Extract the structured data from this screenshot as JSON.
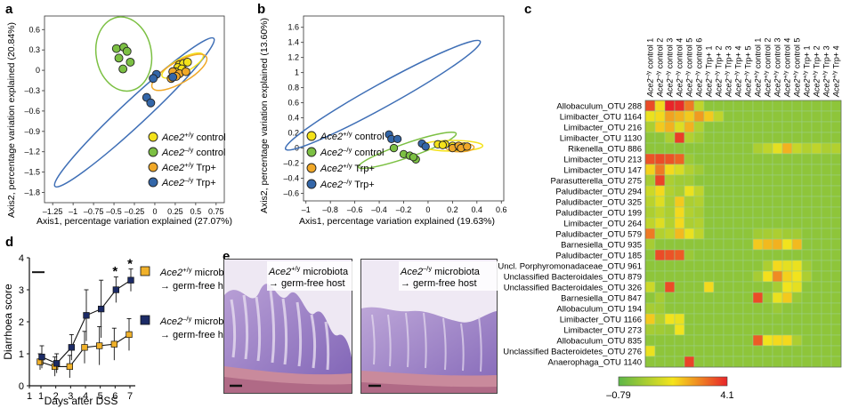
{
  "panels": {
    "a": {
      "letter": "a",
      "xlabel": "Axis1, percentage variation explained (27.07%)",
      "ylabel": "Axis2, percentage variation explained (20.84%)",
      "xticks": [
        "–1.25",
        "–1",
        "–0.75",
        "–0.5",
        "–0.25",
        "0",
        "0.25",
        "0.5",
        "0.75"
      ],
      "yticks": [
        "0.6",
        "0.3",
        "0",
        "–0.3",
        "–0.6",
        "–0.9",
        "–1.2",
        "–1.5",
        "–1.8"
      ],
      "legend": [
        {
          "gene": "Ace2",
          "sup": "+/y",
          "suffix": " control",
          "color": "#f4e21a"
        },
        {
          "gene": "Ace2",
          "sup": "–/y",
          "suffix": " control",
          "color": "#7cc043"
        },
        {
          "gene": "Ace2",
          "sup": "+/y",
          "suffix": " Trp+",
          "color": "#f0a828"
        },
        {
          "gene": "Ace2",
          "sup": "–/y",
          "suffix": " Trp+",
          "color": "#3366a8"
        }
      ]
    },
    "b": {
      "letter": "b",
      "xlabel": "Axis1, percentage variation explained (19.63%)",
      "ylabel": "Axis2, percentage variation explained (13.60%)",
      "xticks": [
        "–1",
        "–0.8",
        "–0.6",
        "–0.4",
        "–0.2",
        "0",
        "0.2",
        "0.4",
        "0.6"
      ],
      "yticks": [
        "1.6",
        "1.4",
        "1.2",
        "1",
        "0.8",
        "0.6",
        "0.4",
        "0.2",
        "0",
        "–0.2",
        "–0.4",
        "–0.6"
      ],
      "legend": [
        {
          "gene": "Ace2",
          "sup": "+/y",
          "suffix": " control",
          "color": "#f4e21a"
        },
        {
          "gene": "Ace2",
          "sup": "–/y",
          "suffix": " control",
          "color": "#7cc043"
        },
        {
          "gene": "Ace2",
          "sup": "+/y",
          "suffix": " Trp+",
          "color": "#f0a828"
        },
        {
          "gene": "Ace2",
          "sup": "–/y",
          "suffix": " Trp+",
          "color": "#3366a8"
        }
      ]
    },
    "c": {
      "letter": "c",
      "columns": [
        "Ace2–/y control 1",
        "Ace2–/y control 2",
        "Ace2–/y control 3",
        "Ace2–/y control 4",
        "Ace2–/y control 5",
        "Ace2–/y control 6",
        "Ace2–/y Trp+ 1",
        "Ace2–/y Trp+ 2",
        "Ace2–/y Trp+ 3",
        "Ace2–/y Trp+ 4",
        "Ace2–/y Trp+ 5",
        "Ace2+/y control 1",
        "Ace2+/y control 2",
        "Ace2+/y control 3",
        "Ace2+/y control 4",
        "Ace2+/y control 5",
        "Ace2+/y Trp+ 1",
        "Ace2+/y Trp+ 2",
        "Ace2+/y Trp+ 3",
        "Ace2+/y Trp+ 4"
      ],
      "rows": [
        "Allobaculum_OTU 288",
        "Limibacter_OTU 1164",
        "Limibacter_OTU 216",
        "Limibacter_OTU 1130",
        "Rikenella_OTU 886",
        "Limibacter_OTU 213",
        "Limibacter_OTU 147",
        "Parasutterella_OTU 275",
        "Paludibacter_OTU 294",
        "Paludibacter_OTU 325",
        "Paludibacter_OTU 199",
        "Limibacter_OTU 264",
        "Paludibacter_OTU 579",
        "Barnesiella_OTU 935",
        "Paludibacter_OTU 185",
        "Uncl. Porphyromonadaceae_OTU 961",
        "Unclassified Bacteroidales_OTU 879",
        "Unclassified Bacteroidales_OTU 326",
        "Barnesiella_OTU 847",
        "Allobaculum_OTU 194",
        "Limibacter_OTU 1166",
        "Limibacter_OTU 273",
        "Allobaculum_OTU 835",
        "Unclassified Bacteroidetes_OTU 276",
        "Anaerophaga_OTU 1140"
      ],
      "colorbar_min": "–0.79",
      "colorbar_max": "4.1",
      "colors": {
        "low": "#5db648",
        "mid": "#f5e41c",
        "high": "#e8242a"
      }
    },
    "d": {
      "letter": "d",
      "ylabel": "Diarrhoea score",
      "xlabel": "Days after DSS",
      "xticks": [
        "1",
        "1",
        "2",
        "3",
        "4",
        "5",
        "6",
        "7"
      ],
      "yticks": [
        "0",
        "1",
        "2",
        "3",
        "4"
      ],
      "star": "*",
      "legend": [
        {
          "gene": "Ace2",
          "sup": "+/y",
          "line1": " microbiota",
          "line2": "→ germ-free host",
          "color": "#f0b12a"
        },
        {
          "gene": "Ace2",
          "sup": "–/y",
          "line1": " microbiota",
          "line2": "→ germ-free host",
          "color": "#1c2b66"
        }
      ]
    },
    "e": {
      "letter": "e",
      "labels": [
        {
          "gene": "Ace2",
          "sup": "+/y",
          "line1": " microbiota",
          "line2": "→ germ-free host"
        },
        {
          "gene": "Ace2",
          "sup": "–/y",
          "line1": " microbiota",
          "line2": "→ germ-free host"
        }
      ]
    }
  },
  "chart_data": [
    {
      "type": "scatter",
      "title": "",
      "xlabel": "Axis1, percentage variation explained (27.07%)",
      "ylabel": "Axis2, percentage variation explained (20.84%)",
      "xlim": [
        -1.35,
        0.85
      ],
      "ylim": [
        -1.95,
        0.8
      ],
      "series": [
        {
          "name": "Ace2+/y control",
          "color": "#f4e21a",
          "points": [
            [
              0.3,
              0.08
            ],
            [
              0.35,
              0.1
            ],
            [
              0.4,
              0.12
            ],
            [
              0.28,
              0.04
            ],
            [
              0.33,
              0.02
            ],
            [
              0.25,
              -0.02
            ]
          ]
        },
        {
          "name": "Ace2–/y control",
          "color": "#7cc043",
          "points": [
            [
              -0.47,
              0.32
            ],
            [
              -0.38,
              0.34
            ],
            [
              -0.34,
              0.28
            ],
            [
              -0.44,
              0.18
            ],
            [
              -0.3,
              0.12
            ],
            [
              -0.39,
              0.02
            ]
          ]
        },
        {
          "name": "Ace2+/y Trp+",
          "color": "#f0a828",
          "points": [
            [
              0.22,
              -0.02
            ],
            [
              0.3,
              -0.05
            ],
            [
              0.26,
              -0.09
            ],
            [
              0.38,
              -0.02
            ],
            [
              0.2,
              -0.12
            ]
          ]
        },
        {
          "name": "Ace2–/y Trp+",
          "color": "#3366a8",
          "points": [
            [
              0.02,
              -0.06
            ],
            [
              -0.02,
              -0.12
            ],
            [
              -0.1,
              -0.4
            ],
            [
              -0.05,
              -0.48
            ],
            [
              0.22,
              -0.1
            ]
          ]
        }
      ]
    },
    {
      "type": "scatter",
      "title": "",
      "xlabel": "Axis1, percentage variation explained (19.63%)",
      "ylabel": "Axis2, percentage variation explained (13.60%)",
      "xlim": [
        -1.02,
        0.62
      ],
      "ylim": [
        -0.7,
        1.75
      ],
      "series": [
        {
          "name": "Ace2+/y control",
          "color": "#f4e21a",
          "points": [
            [
              0.08,
              0.05
            ],
            [
              0.14,
              0.05
            ],
            [
              0.2,
              0.03
            ],
            [
              0.24,
              0.02
            ],
            [
              0.3,
              0.02
            ],
            [
              0.12,
              0.04
            ]
          ]
        },
        {
          "name": "Ace2–/y control",
          "color": "#7cc043",
          "points": [
            [
              -0.28,
              0.0
            ],
            [
              -0.2,
              -0.08
            ],
            [
              -0.15,
              -0.1
            ],
            [
              -0.1,
              -0.15
            ],
            [
              -0.12,
              -0.12
            ]
          ]
        },
        {
          "name": "Ace2+/y Trp+",
          "color": "#f0a828",
          "points": [
            [
              0.2,
              0.0
            ],
            [
              0.25,
              0.03
            ],
            [
              0.27,
              0.0
            ],
            [
              0.32,
              0.02
            ]
          ]
        },
        {
          "name": "Ace2–/y Trp+",
          "color": "#3366a8",
          "points": [
            [
              -0.32,
              0.18
            ],
            [
              -0.3,
              0.12
            ],
            [
              -0.25,
              0.12
            ],
            [
              -0.05,
              0.06
            ],
            [
              -0.02,
              0.02
            ]
          ]
        }
      ]
    },
    {
      "type": "heatmap",
      "title": "",
      "xlabel": "",
      "ylabel": "",
      "zlim": [
        -0.79,
        4.1
      ],
      "x": [
        "Ace2–/y control 1",
        "Ace2–/y control 2",
        "Ace2–/y control 3",
        "Ace2–/y control 4",
        "Ace2–/y control 5",
        "Ace2–/y control 6",
        "Ace2–/y Trp+ 1",
        "Ace2–/y Trp+ 2",
        "Ace2–/y Trp+ 3",
        "Ace2–/y Trp+ 4",
        "Ace2–/y Trp+ 5",
        "Ace2+/y control 1",
        "Ace2+/y control 2",
        "Ace2+/y control 3",
        "Ace2+/y control 4",
        "Ace2+/y control 5",
        "Ace2+/y Trp+ 1",
        "Ace2+/y Trp+ 2",
        "Ace2+/y Trp+ 3",
        "Ace2+/y Trp+ 4"
      ],
      "y": [
        "Allobaculum_OTU 288",
        "Limibacter_OTU 1164",
        "Limibacter_OTU 216",
        "Limibacter_OTU 1130",
        "Rikenella_OTU 886",
        "Limibacter_OTU 213",
        "Limibacter_OTU 147",
        "Parasutterella_OTU 275",
        "Paludibacter_OTU 294",
        "Paludibacter_OTU 325",
        "Paludibacter_OTU 199",
        "Limibacter_OTU 264",
        "Paludibacter_OTU 579",
        "Barnesiella_OTU 935",
        "Paludibacter_OTU 185",
        "Uncl. Porphyromonadaceae_OTU 961",
        "Unclassified Bacteroidales_OTU 879",
        "Unclassified Bacteroidales_OTU 326",
        "Barnesiella_OTU 847",
        "Allobaculum_OTU 194",
        "Limibacter_OTU 1166",
        "Limibacter_OTU 273",
        "Allobaculum_OTU 835",
        "Unclassified Bacteroidetes_OTU 276",
        "Anaerophaga_OTU 1140"
      ],
      "values": [
        [
          3.6,
          1.8,
          4.1,
          4.0,
          3.0,
          0.8,
          0,
          0,
          0,
          0,
          0,
          0,
          0,
          0,
          0,
          0,
          0,
          0,
          0,
          0
        ],
        [
          1.5,
          1.8,
          2.5,
          2.3,
          2.0,
          2.6,
          2.0,
          0.8,
          0,
          0,
          0,
          0,
          0,
          0,
          0,
          0,
          0,
          0,
          0,
          0
        ],
        [
          0.5,
          2.0,
          2.3,
          1.3,
          2.3,
          0.6,
          0,
          0,
          0,
          0,
          0,
          0,
          0,
          0,
          0,
          0,
          0,
          0,
          0,
          0
        ],
        [
          0,
          0,
          0.5,
          3.8,
          0.6,
          0.3,
          0,
          0,
          0,
          0,
          0,
          0,
          0,
          0,
          0,
          0,
          0,
          0,
          0,
          0
        ],
        [
          0,
          0,
          0,
          0,
          0,
          0,
          0,
          0,
          0,
          0,
          0,
          0.5,
          0.8,
          1.4,
          2.3,
          0.9,
          0.6,
          0.8,
          0.5,
          0.6
        ],
        [
          3.5,
          3.6,
          3.5,
          3.3,
          0.2,
          0,
          0,
          0,
          0,
          0,
          0,
          0,
          0,
          0,
          0,
          0,
          0,
          0,
          0,
          0
        ],
        [
          1.9,
          3.0,
          1.8,
          1.2,
          0.6,
          0.3,
          0,
          0,
          0,
          0,
          0,
          0,
          0,
          0,
          0,
          0,
          0,
          0,
          0,
          0
        ],
        [
          0.4,
          3.7,
          0.5,
          0.3,
          0.3,
          0,
          0,
          0,
          0,
          0,
          0,
          0,
          0,
          0,
          0,
          0,
          0,
          0,
          0,
          0
        ],
        [
          1.0,
          1.8,
          0.6,
          0.4,
          1.5,
          0.8,
          0,
          0,
          0,
          0,
          0,
          0,
          0,
          0,
          0,
          0,
          0,
          0,
          0,
          0
        ],
        [
          0.7,
          1.3,
          0.5,
          2.0,
          0.5,
          0.6,
          0,
          0,
          0,
          0,
          0,
          0,
          0,
          0,
          0,
          0,
          0,
          0,
          0,
          0
        ],
        [
          0.5,
          0.8,
          0.5,
          1.8,
          0.6,
          0.4,
          0,
          0,
          0,
          0,
          0,
          0,
          0,
          0,
          0,
          0,
          0,
          0,
          0,
          0
        ],
        [
          0.8,
          1.3,
          0.6,
          1.8,
          0.5,
          0.6,
          0,
          0,
          0,
          0,
          0,
          0,
          0,
          0,
          0,
          0,
          0,
          0,
          0,
          0
        ],
        [
          3.0,
          0.6,
          0.8,
          2.2,
          1.5,
          0.8,
          0,
          0,
          0,
          0,
          0,
          0.3,
          0.4,
          0.5,
          0.3,
          0.3,
          0,
          0,
          0,
          0
        ],
        [
          0.4,
          0,
          0,
          0,
          0,
          0,
          0,
          0,
          0,
          0,
          0,
          2.0,
          2.2,
          2.3,
          1.6,
          2.2,
          0,
          0,
          0,
          0
        ],
        [
          0,
          3.6,
          3.5,
          3.4,
          0.2,
          0,
          0,
          0,
          0,
          0,
          0,
          0,
          0,
          0,
          0,
          0,
          0,
          0,
          0,
          0
        ],
        [
          0,
          0,
          0,
          0,
          0,
          0,
          0,
          0,
          0,
          0,
          0,
          0,
          0.5,
          1.8,
          1.4,
          1.5,
          0.3,
          0,
          0,
          0
        ],
        [
          0,
          0,
          0,
          0,
          0,
          0,
          0,
          0,
          0,
          0,
          0,
          0.4,
          1.7,
          2.8,
          1.9,
          1.6,
          0.5,
          0,
          0,
          0
        ],
        [
          1.0,
          0,
          3.6,
          0,
          0,
          0,
          1.8,
          0,
          0,
          0,
          0,
          0,
          0,
          0.4,
          1.6,
          1.4,
          0,
          0,
          0,
          0
        ],
        [
          0,
          0.4,
          0,
          0,
          0,
          0,
          0,
          0,
          0,
          0,
          0,
          3.6,
          0.2,
          1.5,
          2.0,
          0.2,
          0,
          0,
          0,
          0
        ],
        [
          0.4,
          0.3,
          0,
          0,
          0,
          0,
          0,
          0,
          0,
          0,
          0,
          0,
          0,
          0.2,
          0,
          0,
          0,
          0,
          0,
          0
        ],
        [
          2.0,
          0.6,
          1.6,
          1.5,
          0,
          0,
          0,
          0,
          0,
          0,
          0,
          0,
          0,
          0,
          0,
          0,
          0,
          0,
          0,
          0
        ],
        [
          0.4,
          0.3,
          0.2,
          1.6,
          0,
          0,
          0,
          0,
          0,
          0,
          0,
          0,
          0,
          0,
          0,
          0,
          0,
          0,
          0,
          0
        ],
        [
          0,
          0,
          0,
          0,
          0,
          0,
          0,
          0,
          0,
          0,
          0,
          3.4,
          1.6,
          1.8,
          1.8,
          0.5,
          0,
          0,
          0,
          0
        ],
        [
          1.5,
          0,
          0,
          0,
          0,
          0,
          0,
          0,
          0,
          0,
          0,
          0,
          0,
          0,
          0,
          0,
          0,
          0,
          0,
          0
        ],
        [
          0,
          0,
          0,
          0,
          3.7,
          0,
          0,
          0,
          0,
          0,
          0,
          0,
          0,
          0,
          0,
          0,
          0,
          0,
          0,
          0
        ]
      ]
    },
    {
      "type": "line",
      "title": "",
      "xlabel": "Days after DSS",
      "ylabel": "Diarrhoea score",
      "ylim": [
        0,
        4
      ],
      "x": [
        1,
        2,
        3,
        4,
        5,
        6,
        7
      ],
      "series": [
        {
          "name": "Ace2+/y microbiota → germ-free host",
          "color": "#f0b12a",
          "values": [
            0.75,
            0.6,
            0.6,
            1.2,
            1.25,
            1.3,
            1.6
          ],
          "err": [
            0.25,
            0.3,
            0.35,
            0.5,
            0.6,
            0.5,
            0.5
          ]
        },
        {
          "name": "Ace2–/y microbiota → germ-free host",
          "color": "#1c2b66",
          "values": [
            0.9,
            0.7,
            1.2,
            2.2,
            2.4,
            3.0,
            3.3
          ],
          "err": [
            0.35,
            0.3,
            0.4,
            0.8,
            0.9,
            0.4,
            0.35
          ]
        }
      ]
    }
  ]
}
